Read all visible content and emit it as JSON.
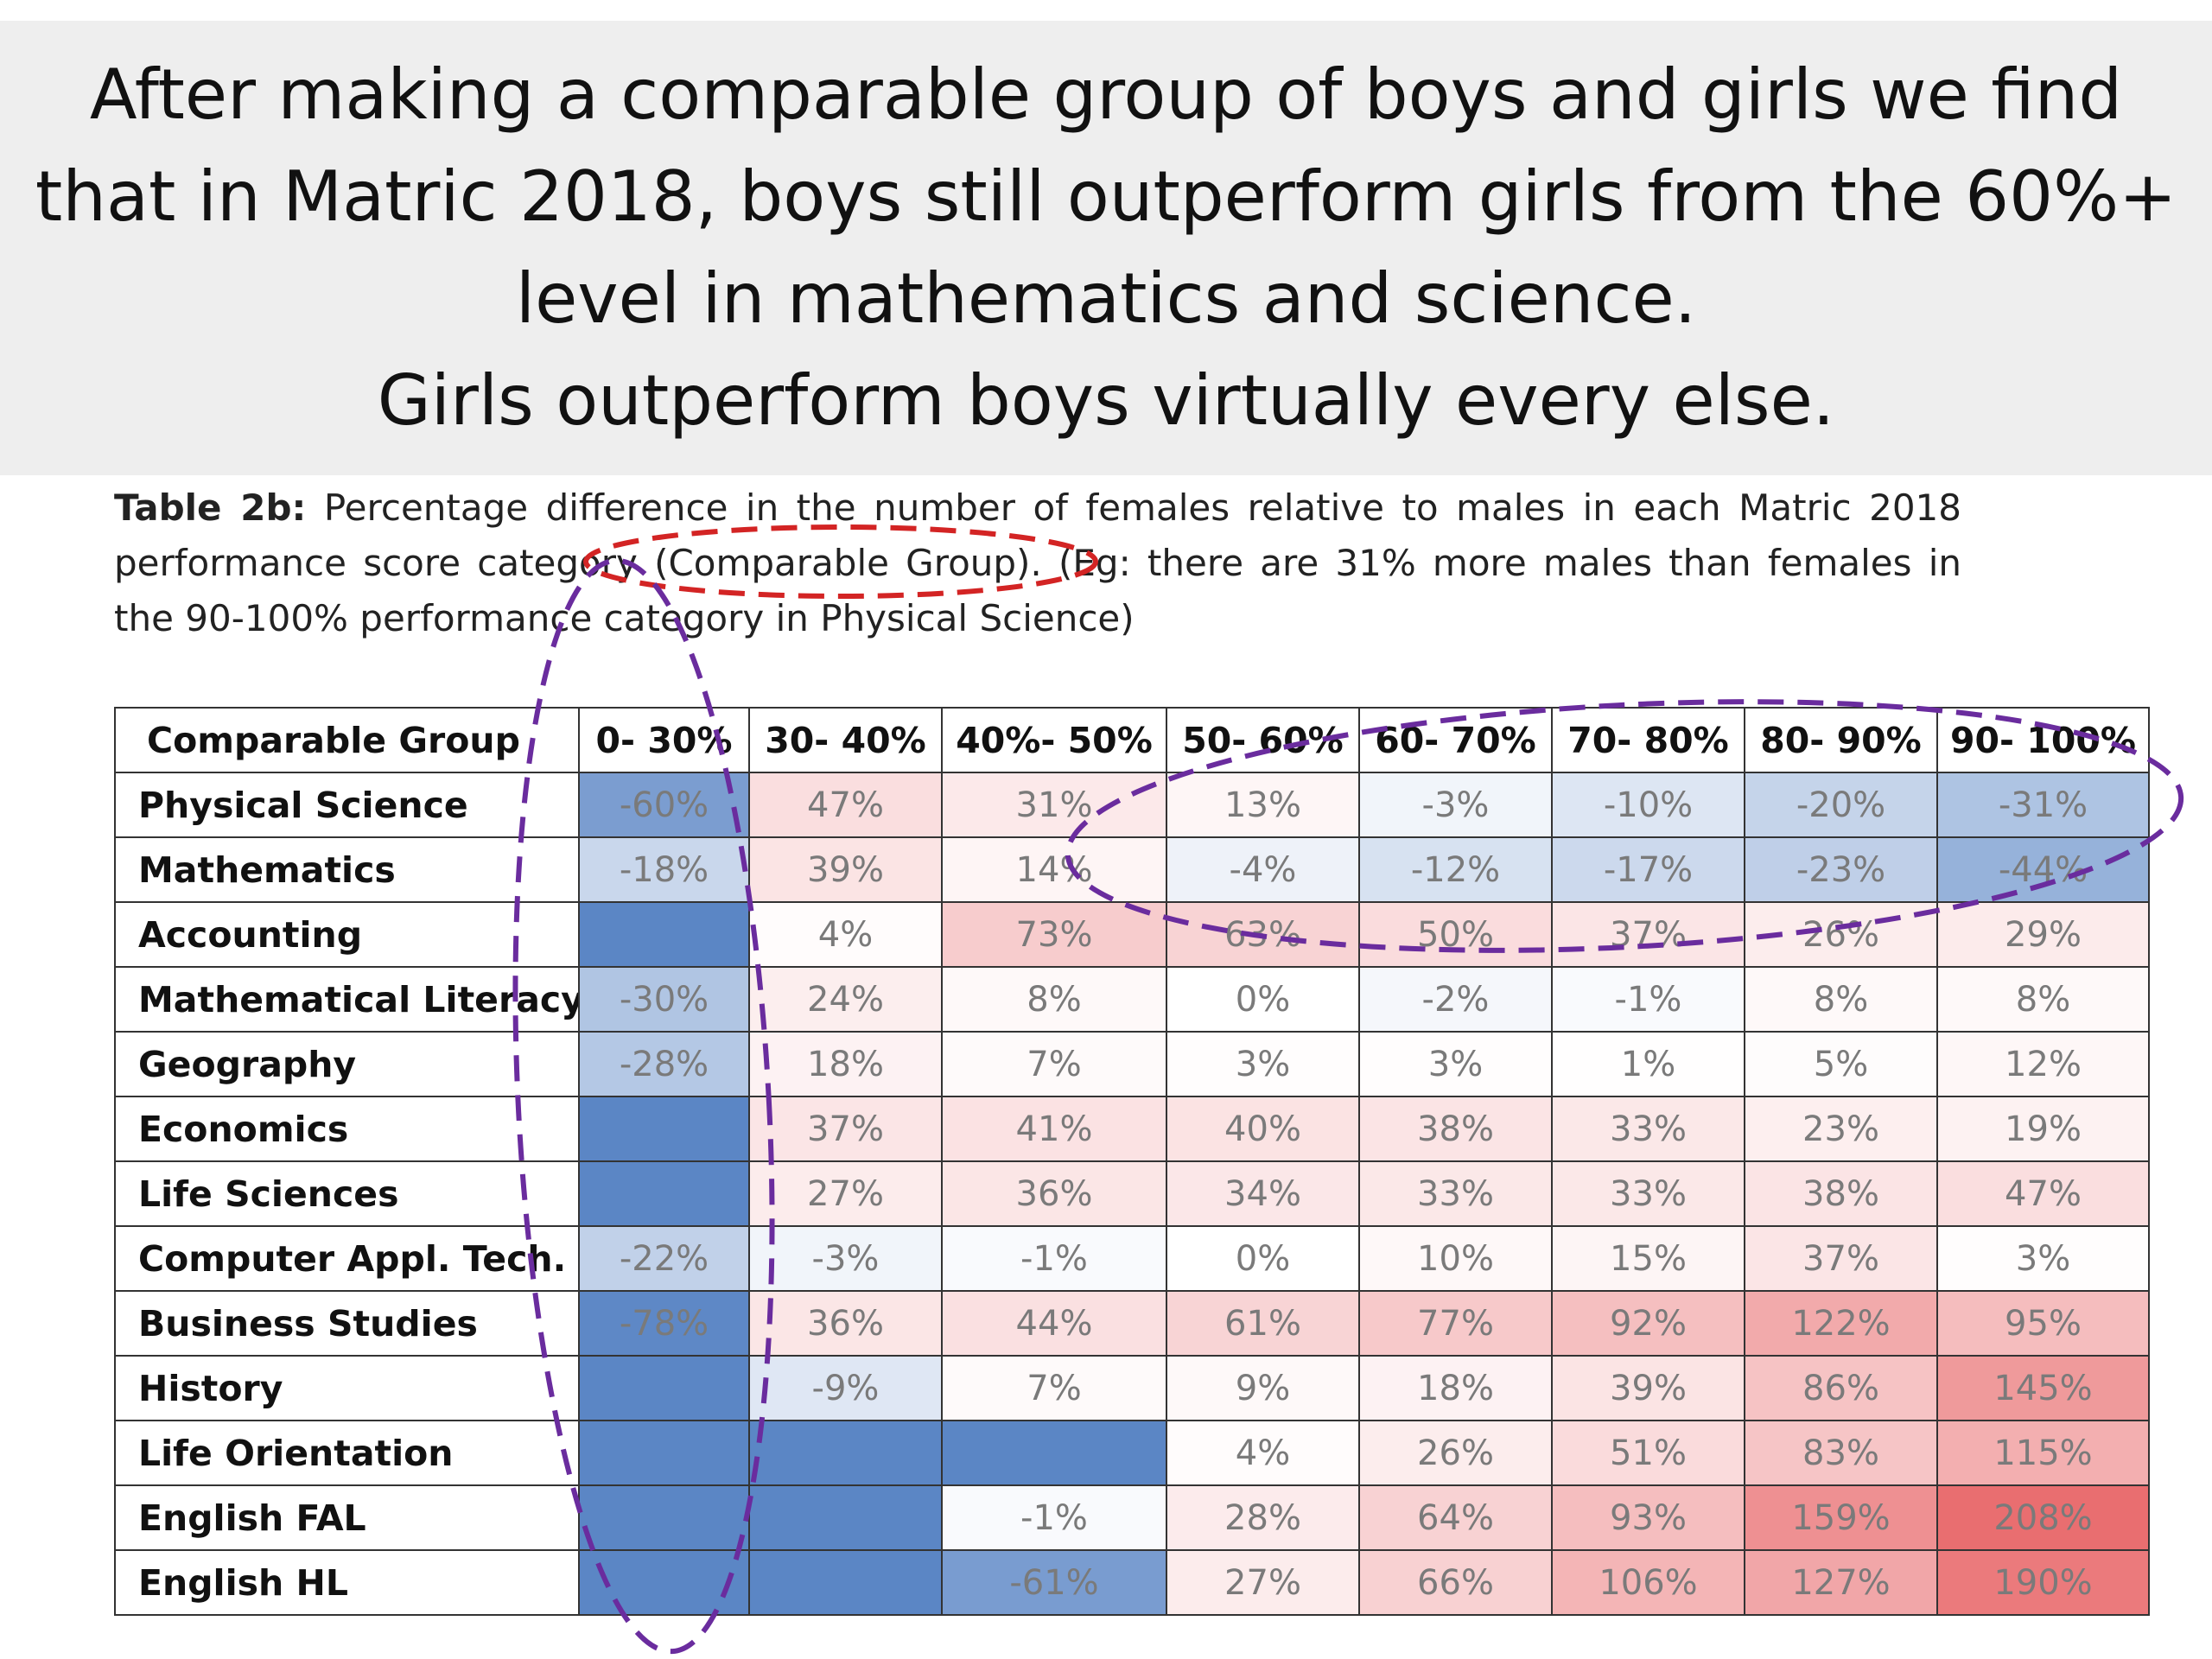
{
  "banner": {
    "line1": "After making a comparable group of boys and girls we find",
    "line2": "that in Matric 2018, boys still outperform girls from the 60%+",
    "line3": "level in mathematics and science.",
    "line4": "Girls outperform boys virtually every else."
  },
  "caption": {
    "label": "Table 2b:",
    "text": " Percentage difference in the number of females relative to males in each Matric 2018 performance score category (Comparable Group). (Eg: there are 31% more males than females in the 90-100% performance category in Physical Science)"
  },
  "table": {
    "corner": "Comparable Group",
    "columns": [
      "0- 30%",
      "30- 40%",
      "40%- 50%",
      "50- 60%",
      "60- 70%",
      "70- 80%",
      "80- 90%",
      "90- 100%"
    ],
    "rows": [
      {
        "subject": "Physical Science",
        "values": [
          "-60%",
          "47%",
          "31%",
          "13%",
          "-3%",
          "-10%",
          "-20%",
          "-31%"
        ]
      },
      {
        "subject": "Mathematics",
        "values": [
          "-18%",
          "39%",
          "14%",
          "-4%",
          "-12%",
          "-17%",
          "-23%",
          "-44%"
        ]
      },
      {
        "subject": "Accounting",
        "values": [
          "",
          "4%",
          "73%",
          "63%",
          "50%",
          "37%",
          "26%",
          "29%"
        ]
      },
      {
        "subject": "Mathematical Literacy",
        "values": [
          "-30%",
          "24%",
          "8%",
          "0%",
          "-2%",
          "-1%",
          "8%",
          "8%"
        ]
      },
      {
        "subject": "Geography",
        "values": [
          "-28%",
          "18%",
          "7%",
          "3%",
          "3%",
          "1%",
          "5%",
          "12%"
        ]
      },
      {
        "subject": "Economics",
        "values": [
          "",
          "37%",
          "41%",
          "40%",
          "38%",
          "33%",
          "23%",
          "19%"
        ]
      },
      {
        "subject": "Life Sciences",
        "values": [
          "",
          "27%",
          "36%",
          "34%",
          "33%",
          "33%",
          "38%",
          "47%"
        ]
      },
      {
        "subject": "Computer Appl. Tech.",
        "values": [
          "-22%",
          "-3%",
          "-1%",
          "0%",
          "10%",
          "15%",
          "37%",
          "3%"
        ]
      },
      {
        "subject": "Business Studies",
        "values": [
          "-78%",
          "36%",
          "44%",
          "61%",
          "77%",
          "92%",
          "122%",
          "95%"
        ]
      },
      {
        "subject": "History",
        "values": [
          "",
          "-9%",
          "7%",
          "9%",
          "18%",
          "39%",
          "86%",
          "145%"
        ]
      },
      {
        "subject": "Life Orientation",
        "values": [
          "",
          "",
          "",
          "4%",
          "26%",
          "51%",
          "83%",
          "115%"
        ]
      },
      {
        "subject": "English FAL",
        "values": [
          "",
          "",
          "-1%",
          "28%",
          "64%",
          "93%",
          "159%",
          "208%"
        ]
      },
      {
        "subject": "English HL",
        "values": [
          "",
          "",
          "-61%",
          "27%",
          "66%",
          "106%",
          "127%",
          "190%"
        ]
      }
    ]
  },
  "colors": {
    "banner_bg": "#eeeeee",
    "negative": "#5b86c5",
    "neutral": "#ffffff",
    "positive": "#e8696b",
    "red_marker": "#d32424",
    "purple_marker": "#6a2c9e"
  }
}
